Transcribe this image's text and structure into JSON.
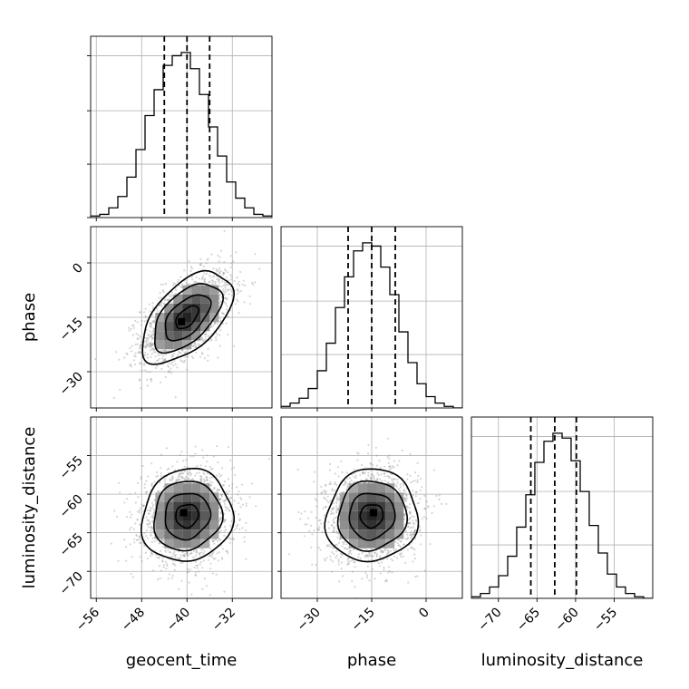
{
  "chart_data": {
    "type": "corner",
    "parameters": [
      "geocent_time",
      "phase",
      "luminosity_distance"
    ],
    "labels": [
      "geocent_time",
      "phase",
      "luminosity_distance"
    ],
    "ranges": [
      [
        -57,
        -25
      ],
      [
        -40,
        10
      ],
      [
        -73.5,
        -50
      ]
    ],
    "ticks": [
      [
        -56,
        -48,
        -40,
        -32
      ],
      [
        -30,
        -15,
        0
      ],
      [
        -70,
        -65,
        -60,
        -55
      ]
    ],
    "tick_labels": [
      [
        "−56",
        "−48",
        "−40",
        "−32"
      ],
      [
        "−30",
        "−15",
        "0"
      ],
      [
        "−70",
        "−65",
        "−60",
        "−55"
      ]
    ],
    "y_ticks": {
      "phase": [
        -30,
        -15,
        0
      ],
      "luminosity_distance": [
        -70,
        -65,
        -60,
        -55
      ]
    },
    "y_tick_labels": {
      "phase": [
        "−30",
        "−15",
        "0"
      ],
      "luminosity_distance": [
        "−70",
        "−65",
        "−60",
        "−55"
      ]
    },
    "quantiles": [
      [
        -44.0,
        -40.0,
        -36.0
      ],
      [
        -21.5,
        -15.0,
        -8.5
      ],
      [
        -65.8,
        -62.7,
        -59.9
      ]
    ],
    "histograms": [
      {
        "parameter": "geocent_time",
        "edges": [
          -57,
          -55.4,
          -53.8,
          -52.2,
          -50.6,
          -49,
          -47.4,
          -45.8,
          -44.2,
          -42.6,
          -41,
          -39.4,
          -37.8,
          -36.2,
          -34.6,
          -33,
          -31.4,
          -29.8,
          -28.2,
          -26.6,
          -25
        ],
        "counts": [
          0.01,
          0.02,
          0.06,
          0.13,
          0.25,
          0.42,
          0.63,
          0.79,
          0.94,
          1.0,
          1.02,
          0.92,
          0.76,
          0.56,
          0.38,
          0.22,
          0.12,
          0.06,
          0.02,
          0.01
        ]
      },
      {
        "parameter": "phase",
        "edges": [
          -40,
          -37.5,
          -35,
          -32.5,
          -30,
          -27.5,
          -25,
          -22.5,
          -20,
          -17.5,
          -15,
          -12.5,
          -10,
          -7.5,
          -5,
          -2.5,
          0,
          2.5,
          5,
          7.5,
          10
        ],
        "counts": [
          0.01,
          0.03,
          0.06,
          0.12,
          0.23,
          0.4,
          0.62,
          0.81,
          0.97,
          1.02,
          1.0,
          0.87,
          0.7,
          0.47,
          0.28,
          0.15,
          0.07,
          0.03,
          0.01,
          0.0
        ]
      },
      {
        "parameter": "luminosity_distance",
        "edges": [
          -73.5,
          -72.33,
          -71.15,
          -69.98,
          -68.8,
          -67.63,
          -66.45,
          -65.28,
          -64.1,
          -62.93,
          -61.75,
          -60.58,
          -59.4,
          -58.23,
          -57.05,
          -55.88,
          -54.7,
          -53.53,
          -52.35,
          -51.18,
          -50
        ],
        "counts": [
          0.01,
          0.03,
          0.07,
          0.14,
          0.26,
          0.44,
          0.64,
          0.84,
          0.97,
          1.02,
          0.99,
          0.85,
          0.66,
          0.45,
          0.28,
          0.15,
          0.07,
          0.03,
          0.01,
          0.0
        ]
      }
    ],
    "pairs": [
      {
        "x": "geocent_time",
        "y": "phase",
        "mean": [
          -40,
          -15
        ],
        "std": [
          4.0,
          6.3
        ],
        "correlation": 0.55,
        "contour_levels": [
          0.5,
          1.0,
          1.5,
          2.0
        ],
        "peak": [
          -41.0,
          -16.2
        ]
      },
      {
        "x": "geocent_time",
        "y": "luminosity_distance",
        "mean": [
          -40,
          -62.8
        ],
        "std": [
          4.0,
          3.0
        ],
        "correlation": 0.08,
        "contour_levels": [
          0.5,
          1.0,
          1.5,
          2.0
        ],
        "peak": [
          -40.6,
          -62.4
        ]
      },
      {
        "x": "phase",
        "y": "luminosity_distance",
        "mean": [
          -15,
          -62.8
        ],
        "std": [
          6.3,
          3.0
        ],
        "correlation": 0.05,
        "contour_levels": [
          0.5,
          1.0,
          1.5,
          2.0
        ],
        "peak": [
          -14.5,
          -62.4
        ]
      }
    ],
    "grid": true,
    "quantile_line_style": "dashed"
  }
}
